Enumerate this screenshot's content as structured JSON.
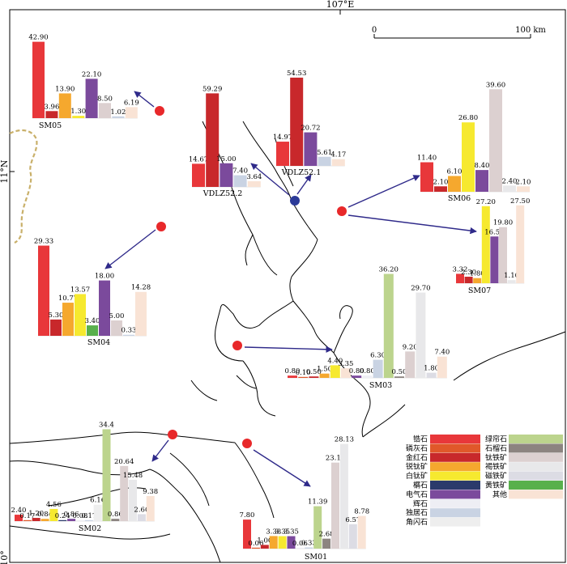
{
  "axes": {
    "lon_label": "107°E",
    "lat_label_11": "11°N",
    "lat_label_10": "10°"
  },
  "scale": {
    "zero": "0",
    "max": "100 km"
  },
  "minerals": [
    {
      "name": "锆石",
      "color": "#e8373a"
    },
    {
      "name": "磷灰石",
      "color": "#e0582a"
    },
    {
      "name": "金红石",
      "color": "#c8282b"
    },
    {
      "name": "锐钛矿",
      "color": "#f5a82e"
    },
    {
      "name": "白钛矿",
      "color": "#f6e92f"
    },
    {
      "name": "榍石",
      "color": "#2b3a6b"
    },
    {
      "name": "电气石",
      "color": "#7b4a9c"
    },
    {
      "name": "辉石",
      "color": "#eeeef4"
    },
    {
      "name": "独居石",
      "color": "#c9d3e3"
    },
    {
      "name": "角闪石",
      "color": "#eeeeee"
    },
    {
      "name": "绿帘石",
      "color": "#bcd48d"
    },
    {
      "name": "石榴石",
      "color": "#8c8480"
    },
    {
      "name": "钛铁矿",
      "color": "#dcd0d0"
    },
    {
      "name": "褐铁矿",
      "color": "#e8e8ea"
    },
    {
      "name": "磁铁矿",
      "color": "#dcdce4"
    },
    {
      "name": "黄铁矿",
      "color": "#58b04c"
    },
    {
      "name": "其他",
      "color": "#f9e3d5"
    }
  ],
  "samples": [
    {
      "name": "SM05",
      "bars": [
        {
          "value": 42.9,
          "label": "42.90",
          "color": "#e8373a"
        },
        {
          "value": 3.96,
          "label": "3.96",
          "color": "#c8282b"
        },
        {
          "value": 13.9,
          "label": "13.90",
          "color": "#f5a82e"
        },
        {
          "value": 1.3,
          "label": "1.30",
          "color": "#f6e92f"
        },
        {
          "value": 22.1,
          "label": "22.10",
          "color": "#7b4a9c"
        },
        {
          "value": 8.5,
          "label": "8.50",
          "color": "#dcd0d0"
        },
        {
          "value": 1.02,
          "label": "1.02",
          "color": "#c9d3e3"
        },
        {
          "value": 6.19,
          "label": "6.19",
          "color": "#f9e3d5"
        }
      ]
    },
    {
      "name": "VDLZ52.2",
      "bars": [
        {
          "value": 14.67,
          "label": "14.67",
          "color": "#e8373a"
        },
        {
          "value": 59.29,
          "label": "59.29",
          "color": "#c8282b"
        },
        {
          "value": 15.0,
          "label": "15.00",
          "color": "#7b4a9c"
        },
        {
          "value": 7.4,
          "label": "7.40",
          "color": "#c9d3e3"
        },
        {
          "value": 3.64,
          "label": "3.64",
          "color": "#f9e3d5"
        }
      ]
    },
    {
      "name": "VDLZ52.1",
      "bars": [
        {
          "value": 14.97,
          "label": "14.97",
          "color": "#e8373a"
        },
        {
          "value": 54.53,
          "label": "54.53",
          "color": "#c8282b"
        },
        {
          "value": 20.72,
          "label": "20.72",
          "color": "#7b4a9c"
        },
        {
          "value": 5.61,
          "label": "5.61",
          "color": "#c9d3e3"
        },
        {
          "value": 4.17,
          "label": "4.17",
          "color": "#f9e3d5"
        }
      ]
    },
    {
      "name": "SM06",
      "bars": [
        {
          "value": 11.4,
          "label": "11.40",
          "color": "#e8373a"
        },
        {
          "value": 2.1,
          "label": "2.10",
          "color": "#c8282b"
        },
        {
          "value": 6.1,
          "label": "6.10",
          "color": "#f5a82e"
        },
        {
          "value": 26.8,
          "label": "26.80",
          "color": "#f6e92f"
        },
        {
          "value": 8.4,
          "label": "8.40",
          "color": "#7b4a9c"
        },
        {
          "value": 39.6,
          "label": "39.60",
          "color": "#dcd0d0"
        },
        {
          "value": 2.4,
          "label": "2.40",
          "color": "#e8e8ea"
        },
        {
          "value": 2.1,
          "label": "2.10",
          "color": "#f9e3d5"
        }
      ]
    },
    {
      "name": "SM07",
      "bars": [
        {
          "value": 3.32,
          "label": "3.32",
          "color": "#e8373a"
        },
        {
          "value": 2.3,
          "label": "2.30",
          "color": "#c8282b"
        },
        {
          "value": 1.8,
          "label": "1.80",
          "color": "#f5a82e"
        },
        {
          "value": 27.2,
          "label": "27.20",
          "color": "#f6e92f"
        },
        {
          "value": 16.5,
          "label": "16.50",
          "color": "#7b4a9c"
        },
        {
          "value": 19.8,
          "label": "19.80",
          "color": "#dcd0d0"
        },
        {
          "value": 1.1,
          "label": "1.10",
          "color": "#e8e8ea"
        },
        {
          "value": 27.5,
          "label": "27.50",
          "color": "#f9e3d5"
        }
      ]
    },
    {
      "name": "SM04",
      "bars": [
        {
          "value": 29.33,
          "label": "29.33",
          "color": "#e8373a"
        },
        {
          "value": 5.3,
          "label": "5.30",
          "color": "#c8282b"
        },
        {
          "value": 10.77,
          "label": "10.77",
          "color": "#f5a82e"
        },
        {
          "value": 13.57,
          "label": "13.57",
          "color": "#f6e92f"
        },
        {
          "value": 3.4,
          "label": "3.40",
          "color": "#58b04c"
        },
        {
          "value": 18.0,
          "label": "18.00",
          "color": "#7b4a9c"
        },
        {
          "value": 5.0,
          "label": "5.00",
          "color": "#dcd0d0"
        },
        {
          "value": 0.33,
          "label": "0.33",
          "color": "#c9d3e3"
        },
        {
          "value": 14.28,
          "label": "14.28",
          "color": "#f9e3d5"
        }
      ]
    },
    {
      "name": "SM03",
      "bars": [
        {
          "value": 0.8,
          "label": "0.80",
          "color": "#e8373a"
        },
        {
          "value": 0.1,
          "label": "0.10",
          "color": "#e0582a"
        },
        {
          "value": 0.5,
          "label": "0.50",
          "color": "#c8282b"
        },
        {
          "value": 1.5,
          "label": "1.50",
          "color": "#f5a82e"
        },
        {
          "value": 4.4,
          "label": "4.40",
          "color": "#f6e92f"
        },
        {
          "value": 3.35,
          "label": "3.35",
          "color": "#f9e3d5"
        },
        {
          "value": 0.8,
          "label": "0.80",
          "color": "#7b4a9c"
        },
        {
          "value": 0.8,
          "label": "0.80",
          "color": "#eeeef4"
        },
        {
          "value": 6.3,
          "label": "6.30",
          "color": "#c9d3e3"
        },
        {
          "value": 36.2,
          "label": "36.20",
          "color": "#bcd48d"
        },
        {
          "value": 0.5,
          "label": "0.50",
          "color": "#8c8480"
        },
        {
          "value": 9.2,
          "label": "9.20",
          "color": "#dcd0d0"
        },
        {
          "value": 29.7,
          "label": "29.70",
          "color": "#e8e8ea"
        },
        {
          "value": 1.8,
          "label": "1.80",
          "color": "#dcdce4"
        },
        {
          "value": 7.4,
          "label": "7.40",
          "color": "#f9e3d5"
        }
      ]
    },
    {
      "name": "SM02",
      "bars": [
        {
          "value": 2.4,
          "label": "2.40",
          "color": "#e8373a"
        },
        {
          "value": 0.17,
          "label": "0.17",
          "color": "#e0582a"
        },
        {
          "value": 1.2,
          "label": "1.20",
          "color": "#c8282b"
        },
        {
          "value": 0.84,
          "label": "0.84",
          "color": "#f5a82e"
        },
        {
          "value": 4.56,
          "label": "4.56",
          "color": "#f6e92f"
        },
        {
          "value": 0.24,
          "label": "0.24",
          "color": "#2b3a6b"
        },
        {
          "value": 0.86,
          "label": "0.86",
          "color": "#7b4a9c"
        },
        {
          "value": 0.08,
          "label": "0.08",
          "color": "#eeeef4"
        },
        {
          "value": 0.17,
          "label": "0.17",
          "color": "#c9d3e3"
        },
        {
          "value": 6.16,
          "label": "6.16",
          "color": "#eeeeee"
        },
        {
          "value": 34.4,
          "label": "34.4",
          "color": "#bcd48d"
        },
        {
          "value": 0.86,
          "label": "0.86",
          "color": "#8c8480"
        },
        {
          "value": 20.64,
          "label": "20.64",
          "color": "#dcd0d0"
        },
        {
          "value": 15.48,
          "label": "15.48",
          "color": "#e8e8ea"
        },
        {
          "value": 2.6,
          "label": "2.60",
          "color": "#dcdce4"
        },
        {
          "value": 9.38,
          "label": "9.38",
          "color": "#f9e3d5"
        }
      ]
    },
    {
      "name": "SM01",
      "bars": [
        {
          "value": 7.8,
          "label": "7.80",
          "color": "#e8373a"
        },
        {
          "value": 0.06,
          "label": "0.06",
          "color": "#e0582a"
        },
        {
          "value": 1.0,
          "label": "1.00",
          "color": "#c8282b"
        },
        {
          "value": 3.38,
          "label": "3.38",
          "color": "#f5a82e"
        },
        {
          "value": 3.35,
          "label": "3.35",
          "color": "#f6e92f"
        },
        {
          "value": 3.35,
          "label": "3.35",
          "color": "#7b4a9c"
        },
        {
          "value": 0.06,
          "label": "0.06",
          "color": "#eeeef4"
        },
        {
          "value": 0.33,
          "label": "0.33",
          "color": "#c9d3e3"
        },
        {
          "value": 11.39,
          "label": "11.39",
          "color": "#bcd48d"
        },
        {
          "value": 2.68,
          "label": "2.68",
          "color": "#8c8480"
        },
        {
          "value": 23.11,
          "label": "23.11",
          "color": "#dcd0d0"
        },
        {
          "value": 28.13,
          "label": "28.13",
          "color": "#e8e8ea"
        },
        {
          "value": 6.57,
          "label": "6.57",
          "color": "#dcdce4"
        },
        {
          "value": 8.78,
          "label": "8.78",
          "color": "#f9e3d5"
        }
      ]
    }
  ]
}
